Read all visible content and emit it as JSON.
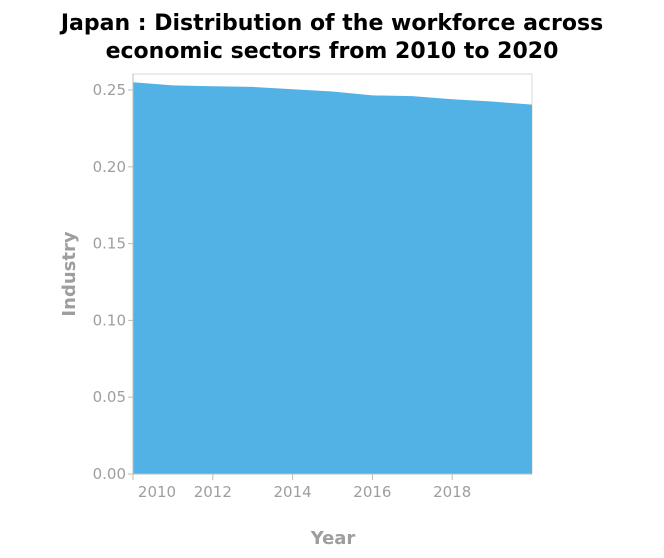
{
  "chart_data": {
    "type": "area",
    "title_lines": [
      "Japan : Distribution of the workforce across",
      "economic sectors from 2010 to 2020"
    ],
    "xlabel": "Year",
    "ylabel": "Industry",
    "xlim": [
      2010,
      2020
    ],
    "ylim": [
      0,
      0.25
    ],
    "x_ticks": [
      {
        "value": 2010,
        "label": "2010"
      },
      {
        "value": 2012,
        "label": "2012"
      },
      {
        "value": 2014,
        "label": "2014"
      },
      {
        "value": 2016,
        "label": "2016"
      },
      {
        "value": 2018,
        "label": "2018"
      }
    ],
    "y_ticks": [
      {
        "value": 0,
        "label": "0.00"
      },
      {
        "value": 0.05,
        "label": "0.05"
      },
      {
        "value": 0.1,
        "label": "0.10"
      },
      {
        "value": 0.15,
        "label": "0.15"
      },
      {
        "value": 0.2,
        "label": "0.20"
      },
      {
        "value": 0.25,
        "label": "0.25"
      }
    ],
    "grid": false,
    "series": [
      {
        "x": [
          2010,
          2011,
          2012,
          2013,
          2014,
          2015,
          2016,
          2017,
          2018,
          2019,
          2020
        ],
        "values": [
          0.255,
          0.253,
          0.2525,
          0.252,
          0.2505,
          0.249,
          0.2465,
          0.246,
          0.244,
          0.2425,
          0.2405
        ]
      }
    ],
    "color": "#52b1e5"
  }
}
